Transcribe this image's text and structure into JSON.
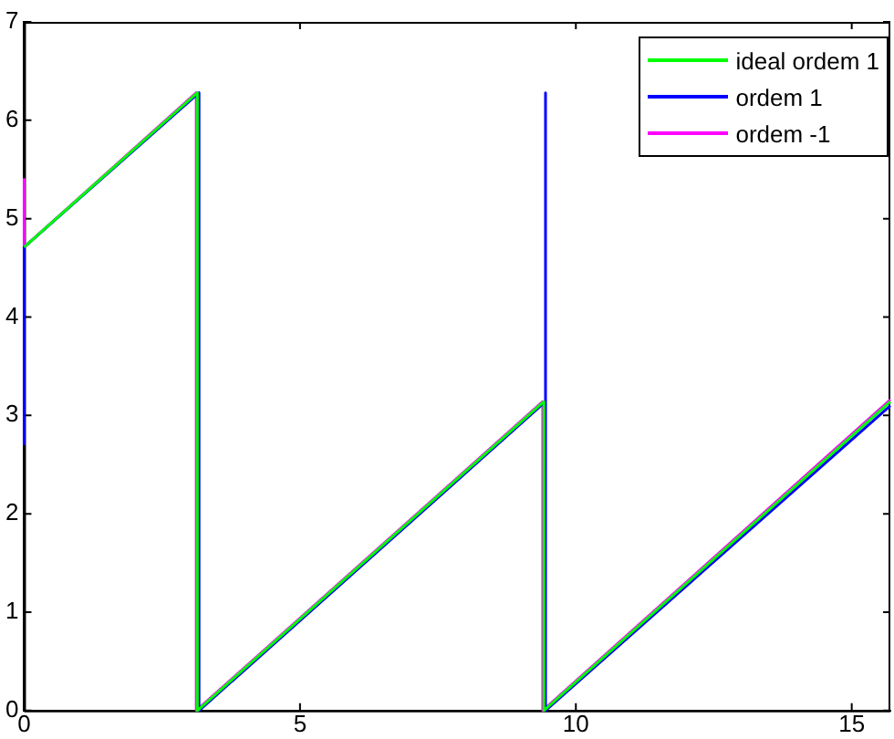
{
  "chart_data": {
    "type": "line",
    "xlim": [
      0,
      15.7
    ],
    "xticks": [
      0,
      5,
      10,
      15
    ],
    "ylim": [
      0,
      7
    ],
    "yticks": [
      0,
      1,
      2,
      3,
      4,
      5,
      6,
      7
    ],
    "grid": false,
    "legend": "top right",
    "marker": "none",
    "line_style": "solid",
    "series": [
      {
        "name": "ideal ordem 1",
        "color": "#00ff00",
        "x": [
          0,
          3.14,
          3.14,
          9.42,
          9.42,
          15.7
        ],
        "values": [
          4.71,
          6.28,
          0,
          3.14,
          0,
          3.14
        ]
      },
      {
        "name": "ordem 1",
        "color": "#0000ff",
        "x": [
          0,
          0,
          3.17,
          3.17,
          9.45,
          9.45,
          9.45,
          15.7
        ],
        "values": [
          2.7,
          4.71,
          6.28,
          0,
          3.14,
          6.28,
          0,
          3.1
        ]
      },
      {
        "name": "ordem -1",
        "color": "#ff00ff",
        "x": [
          0,
          0,
          3.12,
          3.12,
          9.4,
          9.4,
          15.7
        ],
        "values": [
          5.4,
          4.71,
          6.28,
          0,
          3.14,
          0,
          3.16
        ]
      }
    ]
  }
}
